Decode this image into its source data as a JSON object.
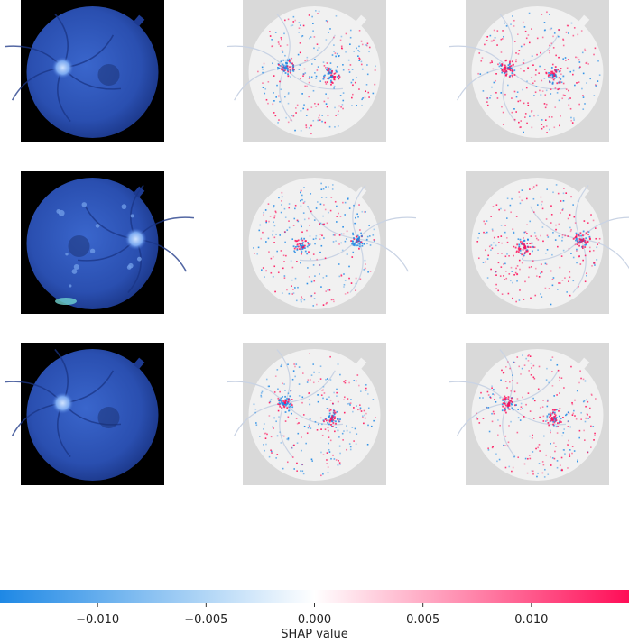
{
  "chart_data": {
    "type": "heatmap",
    "description": "SHAP image explanation grid",
    "rows": 3,
    "columns": 3,
    "column_types": [
      "input-image",
      "shap-map",
      "shap-map"
    ],
    "panels": [
      {
        "row": 1,
        "col": 1,
        "kind": "fundus-image",
        "subject": "retina-1"
      },
      {
        "row": 1,
        "col": 2,
        "kind": "shap-overlay",
        "subject": "retina-1"
      },
      {
        "row": 1,
        "col": 3,
        "kind": "shap-overlay",
        "subject": "retina-1"
      },
      {
        "row": 2,
        "col": 1,
        "kind": "fundus-image",
        "subject": "retina-2"
      },
      {
        "row": 2,
        "col": 2,
        "kind": "shap-overlay",
        "subject": "retina-2"
      },
      {
        "row": 2,
        "col": 3,
        "kind": "shap-overlay",
        "subject": "retina-2"
      },
      {
        "row": 3,
        "col": 1,
        "kind": "fundus-image",
        "subject": "retina-3"
      },
      {
        "row": 3,
        "col": 2,
        "kind": "shap-overlay",
        "subject": "retina-3"
      },
      {
        "row": 3,
        "col": 3,
        "kind": "shap-overlay",
        "subject": "retina-3"
      }
    ],
    "colorbar": {
      "label": "SHAP value",
      "range": [
        -0.0145,
        0.0145
      ],
      "ticks": [
        -0.01,
        -0.005,
        0.0,
        0.005,
        0.01
      ],
      "tick_labels": [
        "−0.010",
        "−0.005",
        "0.000",
        "0.005",
        "0.010"
      ],
      "colors": {
        "negative": "#1e88e5",
        "neutral": "#ffffff",
        "positive": "#ff0d57"
      }
    },
    "grid": false,
    "legend": "none"
  },
  "colors": {
    "panel_background": "#d9d9d9",
    "fundus_background": "#000000",
    "retina_blue": "#2b52b8"
  }
}
